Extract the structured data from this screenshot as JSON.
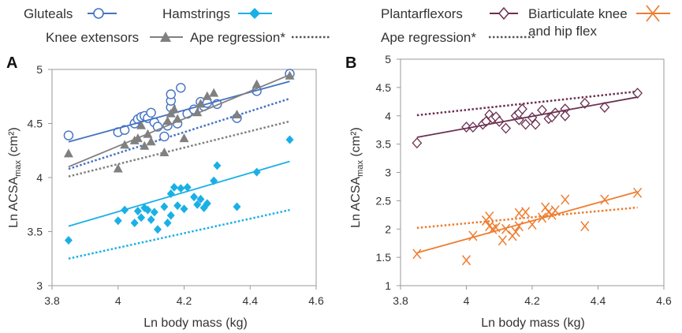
{
  "legend": {
    "gluteals": "Gluteals",
    "hamstrings": "Hamstrings",
    "knee_extensors": "Knee extensors",
    "ape_regression_a": "Ape regression*",
    "plantarflexors": "Plantarflexors",
    "biarticulate_line1": "Biarticulate knee",
    "biarticulate_line2": "and hip flex",
    "ape_regression_b": "Ape regression*"
  },
  "colors": {
    "gluteals": "#4472c4",
    "hamstrings": "#1ab0e6",
    "knee_extensors": "#808080",
    "plantarflexors": "#6b3050",
    "biarticulate": "#ee7d31"
  },
  "chart_data": [
    {
      "type": "scatter",
      "panel_label": "A",
      "xlabel": "Ln body mass (kg)",
      "ylabel_main": "Ln ACSA",
      "ylabel_sub": "max",
      "ylabel_unit": " (cm²)",
      "xlim": [
        3.8,
        4.6
      ],
      "ylim": [
        3,
        5
      ],
      "xticks": [
        "3.8",
        "4",
        "4.2",
        "4.4",
        "4.6"
      ],
      "yticks": [
        "3",
        "3.5",
        "4",
        "4.5",
        "5"
      ],
      "series": [
        {
          "name": "Gluteals",
          "marker": "circle",
          "color": "#4472c4",
          "points": [
            [
              3.85,
              4.39
            ],
            [
              4.0,
              4.42
            ],
            [
              4.02,
              4.44
            ],
            [
              4.05,
              4.5
            ],
            [
              4.06,
              4.54
            ],
            [
              4.07,
              4.56
            ],
            [
              4.08,
              4.57
            ],
            [
              4.09,
              4.55
            ],
            [
              4.1,
              4.6
            ],
            [
              4.11,
              4.51
            ],
            [
              4.12,
              4.47
            ],
            [
              4.14,
              4.38
            ],
            [
              4.15,
              4.48
            ],
            [
              4.16,
              4.65
            ],
            [
              4.16,
              4.71
            ],
            [
              4.16,
              4.77
            ],
            [
              4.18,
              4.5
            ],
            [
              4.19,
              4.83
            ],
            [
              4.21,
              4.59
            ],
            [
              4.23,
              4.63
            ],
            [
              4.25,
              4.7
            ],
            [
              4.26,
              4.66
            ],
            [
              4.27,
              4.69
            ],
            [
              4.3,
              4.68
            ],
            [
              4.36,
              4.55
            ],
            [
              4.42,
              4.8
            ],
            [
              4.52,
              4.96
            ]
          ],
          "fit": [
            [
              3.85,
              4.33
            ],
            [
              4.52,
              4.89
            ]
          ]
        },
        {
          "name": "Knee extensors",
          "marker": "triangle",
          "color": "#808080",
          "points": [
            [
              3.85,
              4.22
            ],
            [
              4.0,
              4.08
            ],
            [
              4.02,
              4.3
            ],
            [
              4.05,
              4.34
            ],
            [
              4.06,
              4.36
            ],
            [
              4.07,
              4.48
            ],
            [
              4.08,
              4.29
            ],
            [
              4.09,
              4.4
            ],
            [
              4.1,
              4.33
            ],
            [
              4.14,
              4.23
            ],
            [
              4.15,
              4.52
            ],
            [
              4.16,
              4.59
            ],
            [
              4.17,
              4.63
            ],
            [
              4.18,
              4.54
            ],
            [
              4.2,
              4.36
            ],
            [
              4.24,
              4.6
            ],
            [
              4.25,
              4.68
            ],
            [
              4.27,
              4.75
            ],
            [
              4.29,
              4.78
            ],
            [
              4.36,
              4.58
            ],
            [
              4.42,
              4.86
            ],
            [
              4.52,
              4.94
            ]
          ],
          "fit": [
            [
              3.85,
              4.1
            ],
            [
              4.52,
              4.95
            ]
          ]
        },
        {
          "name": "Hamstrings",
          "marker": "diamond",
          "color": "#1ab0e6",
          "points": [
            [
              3.85,
              3.42
            ],
            [
              4.0,
              3.6
            ],
            [
              4.02,
              3.7
            ],
            [
              4.05,
              3.58
            ],
            [
              4.06,
              3.69
            ],
            [
              4.07,
              3.63
            ],
            [
              4.08,
              3.72
            ],
            [
              4.09,
              3.7
            ],
            [
              4.1,
              3.61
            ],
            [
              4.11,
              3.68
            ],
            [
              4.12,
              3.52
            ],
            [
              4.14,
              3.73
            ],
            [
              4.15,
              3.58
            ],
            [
              4.16,
              3.65
            ],
            [
              4.16,
              3.85
            ],
            [
              4.17,
              3.91
            ],
            [
              4.18,
              3.74
            ],
            [
              4.19,
              3.9
            ],
            [
              4.2,
              3.71
            ],
            [
              4.21,
              3.91
            ],
            [
              4.23,
              3.82
            ],
            [
              4.24,
              3.75
            ],
            [
              4.25,
              3.8
            ],
            [
              4.26,
              3.72
            ],
            [
              4.27,
              3.76
            ],
            [
              4.29,
              3.97
            ],
            [
              4.3,
              4.11
            ],
            [
              4.36,
              3.73
            ],
            [
              4.42,
              4.05
            ],
            [
              4.52,
              4.35
            ]
          ],
          "fit": [
            [
              3.85,
              3.55
            ],
            [
              4.52,
              4.15
            ]
          ]
        }
      ],
      "ape_regressions": [
        {
          "color": "#4472c4",
          "line": [
            [
              3.85,
              4.08
            ],
            [
              4.52,
              4.73
            ]
          ]
        },
        {
          "color": "#808080",
          "line": [
            [
              3.85,
              4.01
            ],
            [
              4.52,
              4.52
            ]
          ]
        },
        {
          "color": "#1ab0e6",
          "line": [
            [
              3.85,
              3.25
            ],
            [
              4.52,
              3.7
            ]
          ]
        }
      ]
    },
    {
      "type": "scatter",
      "panel_label": "B",
      "xlabel": "Ln body mass (kg)",
      "ylabel_main": "Ln ACSA",
      "ylabel_sub": "max",
      "ylabel_unit": " (cm²)",
      "xlim": [
        3.8,
        4.6
      ],
      "ylim": [
        1,
        5
      ],
      "xticks": [
        "3.8",
        "4",
        "4.2",
        "4.4",
        "4.6"
      ],
      "yticks": [
        "1",
        "1.5",
        "2",
        "2.5",
        "3",
        "3.5",
        "4",
        "4.5",
        "5"
      ],
      "series": [
        {
          "name": "Plantarflexors",
          "marker": "diamond-open",
          "color": "#6b3050",
          "points": [
            [
              3.85,
              3.52
            ],
            [
              4.0,
              3.8
            ],
            [
              4.02,
              3.8
            ],
            [
              4.05,
              3.85
            ],
            [
              4.06,
              3.9
            ],
            [
              4.07,
              4.02
            ],
            [
              4.08,
              3.95
            ],
            [
              4.09,
              3.98
            ],
            [
              4.1,
              3.9
            ],
            [
              4.12,
              3.78
            ],
            [
              4.15,
              4.0
            ],
            [
              4.16,
              3.93
            ],
            [
              4.16,
              4.05
            ],
            [
              4.17,
              4.12
            ],
            [
              4.18,
              3.85
            ],
            [
              4.2,
              3.97
            ],
            [
              4.21,
              3.85
            ],
            [
              4.23,
              4.1
            ],
            [
              4.25,
              3.95
            ],
            [
              4.26,
              3.98
            ],
            [
              4.27,
              4.05
            ],
            [
              4.3,
              4.12
            ],
            [
              4.3,
              4.0
            ],
            [
              4.36,
              4.22
            ],
            [
              4.42,
              4.15
            ],
            [
              4.52,
              4.4
            ]
          ],
          "fit": [
            [
              3.85,
              3.62
            ],
            [
              4.52,
              4.33
            ]
          ]
        },
        {
          "name": "Biarticulate knee and hip flex",
          "marker": "x",
          "color": "#ee7d31",
          "points": [
            [
              3.85,
              1.56
            ],
            [
              4.0,
              1.45
            ],
            [
              4.02,
              1.88
            ],
            [
              4.06,
              2.15
            ],
            [
              4.07,
              2.05
            ],
            [
              4.07,
              2.22
            ],
            [
              4.08,
              2.0
            ],
            [
              4.09,
              2.03
            ],
            [
              4.11,
              1.8
            ],
            [
              4.12,
              2.0
            ],
            [
              4.14,
              1.88
            ],
            [
              4.15,
              1.95
            ],
            [
              4.16,
              2.05
            ],
            [
              4.16,
              2.28
            ],
            [
              4.18,
              2.3
            ],
            [
              4.2,
              2.08
            ],
            [
              4.23,
              2.2
            ],
            [
              4.24,
              2.38
            ],
            [
              4.25,
              2.3
            ],
            [
              4.26,
              2.25
            ],
            [
              4.27,
              2.33
            ],
            [
              4.3,
              2.52
            ],
            [
              4.36,
              2.05
            ],
            [
              4.42,
              2.52
            ],
            [
              4.52,
              2.64
            ]
          ],
          "fit": [
            [
              3.85,
              1.58
            ],
            [
              4.52,
              2.66
            ]
          ]
        }
      ],
      "ape_regressions": [
        {
          "color": "#6b3050",
          "line": [
            [
              3.85,
              4.01
            ],
            [
              4.52,
              4.43
            ]
          ]
        },
        {
          "color": "#ee7d31",
          "line": [
            [
              3.85,
              2.02
            ],
            [
              4.52,
              2.38
            ]
          ]
        }
      ]
    }
  ]
}
